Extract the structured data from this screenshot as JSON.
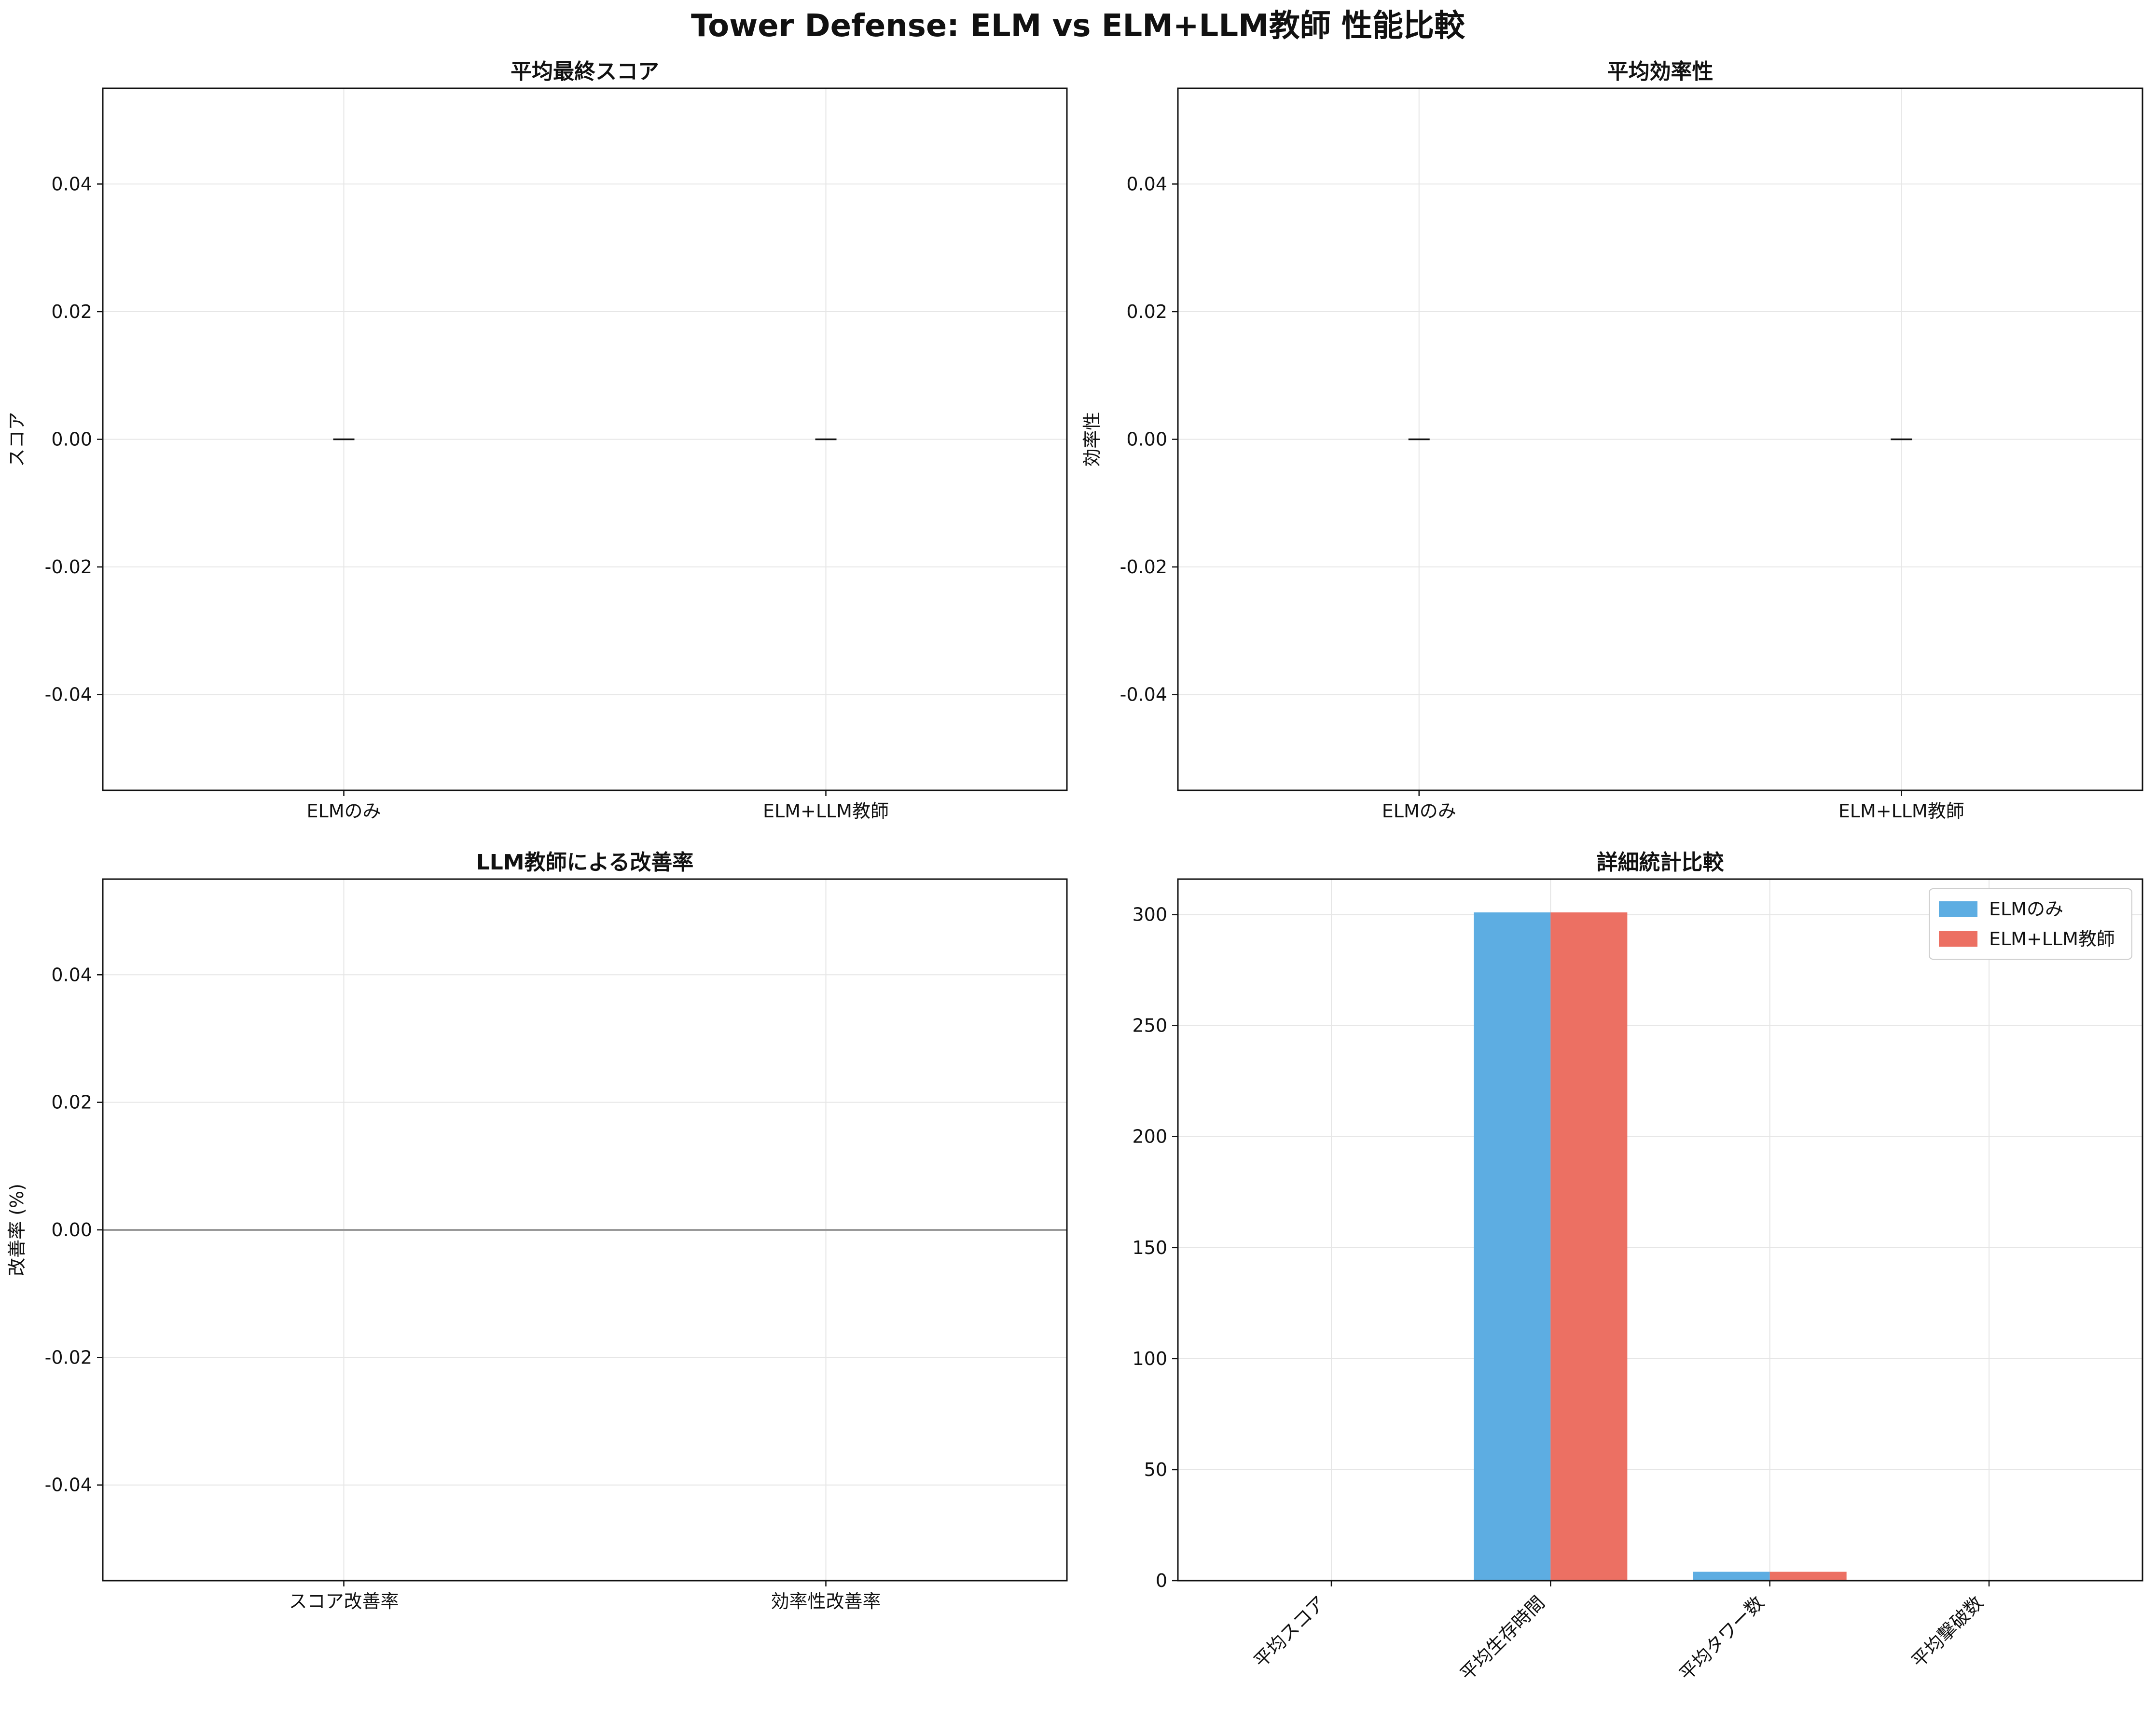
{
  "title": "Tower Defense: ELM vs ELM+LLM教師 性能比較",
  "colors": {
    "elm": "#5DADE2",
    "elm_llm": "#EC7063",
    "grid": "#e6e6e6",
    "zero_line": "#999999"
  },
  "chart_data": [
    {
      "type": "bar",
      "title": "平均最終スコア",
      "xlabel": "",
      "ylabel": "スコア",
      "categories": [
        "ELMのみ",
        "ELM+LLM教師"
      ],
      "values": [
        0,
        0
      ],
      "errors": [
        0,
        0
      ],
      "ylim": [
        -0.055,
        0.055
      ],
      "yticks": [
        -0.04,
        -0.02,
        0.0,
        0.02,
        0.04
      ],
      "ytick_labels": [
        "-0.04",
        "-0.02",
        "0.00",
        "0.02",
        "0.04"
      ],
      "grid": true
    },
    {
      "type": "bar",
      "title": "平均効率性",
      "xlabel": "",
      "ylabel": "効率性",
      "categories": [
        "ELMのみ",
        "ELM+LLM教師"
      ],
      "values": [
        0,
        0
      ],
      "errors": [
        0,
        0
      ],
      "ylim": [
        -0.055,
        0.055
      ],
      "yticks": [
        -0.04,
        -0.02,
        0.0,
        0.02,
        0.04
      ],
      "ytick_labels": [
        "-0.04",
        "-0.02",
        "0.00",
        "0.02",
        "0.04"
      ],
      "grid": true
    },
    {
      "type": "bar",
      "title": "LLM教師による改善率",
      "xlabel": "",
      "ylabel": "改善率 (%)",
      "categories": [
        "スコア改善率",
        "効率性改善率"
      ],
      "values": [
        0,
        0
      ],
      "ylim": [
        -0.055,
        0.055
      ],
      "yticks": [
        -0.04,
        -0.02,
        0.0,
        0.02,
        0.04
      ],
      "ytick_labels": [
        "-0.04",
        "-0.02",
        "0.00",
        "0.02",
        "0.04"
      ],
      "zero_line": true,
      "grid": true
    },
    {
      "type": "bar",
      "title": "詳細統計比較",
      "xlabel": "",
      "ylabel": "",
      "categories": [
        "平均スコア",
        "平均生存時間",
        "平均タワー数",
        "平均撃破数"
      ],
      "series": [
        {
          "name": "ELMのみ",
          "values": [
            0,
            301,
            4,
            0
          ]
        },
        {
          "name": "ELM+LLM教師",
          "values": [
            0,
            301,
            4,
            0
          ]
        }
      ],
      "ylim": [
        0,
        316
      ],
      "yticks": [
        0,
        50,
        100,
        150,
        200,
        250,
        300
      ],
      "ytick_labels": [
        "0",
        "50",
        "100",
        "150",
        "200",
        "250",
        "300"
      ],
      "legend": "top-right",
      "grid": true
    }
  ]
}
